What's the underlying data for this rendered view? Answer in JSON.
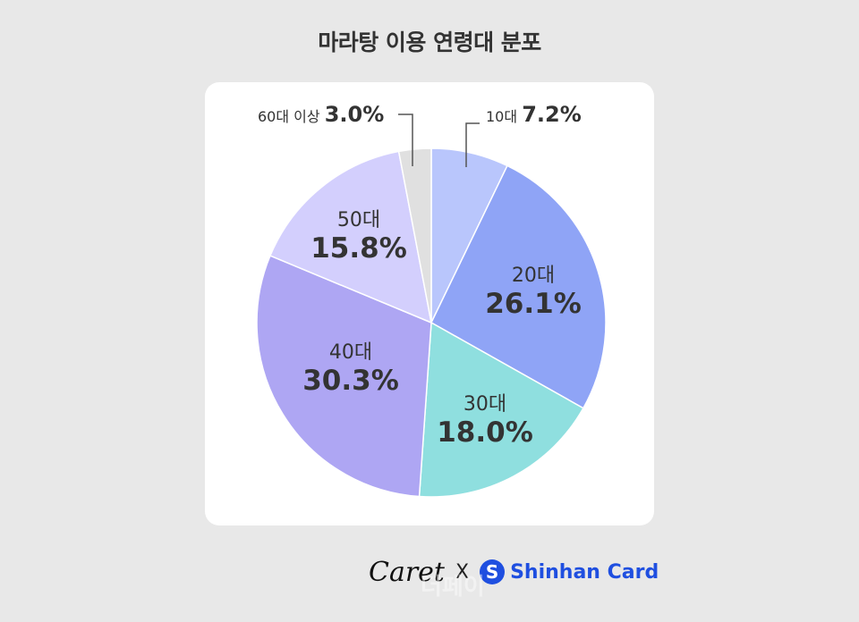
{
  "chart_data": {
    "type": "pie",
    "title": "마라탕 이용 연령대 분포",
    "slices": [
      {
        "label": "10대",
        "value": 7.2,
        "display": "7.2%",
        "color": "#b9c6fc"
      },
      {
        "label": "20대",
        "value": 26.1,
        "display": "26.1%",
        "color": "#8fa4f6"
      },
      {
        "label": "30대",
        "value": 18.0,
        "display": "18.0%",
        "color": "#8fdfdf"
      },
      {
        "label": "40대",
        "value": 30.3,
        "display": "30.3%",
        "color": "#aea6f3"
      },
      {
        "label": "50대",
        "value": 15.8,
        "display": "15.8%",
        "color": "#d3cffd"
      },
      {
        "label": "60대 이상",
        "value": 3.0,
        "display": "3.0%",
        "color": "#e0e0e0"
      }
    ],
    "start_angle": "12 o'clock",
    "direction": "clockwise"
  },
  "footer": {
    "brand1": "Caret",
    "separator": "X",
    "brand2": "Shinhan Card",
    "watermark": "더페이"
  },
  "colors": {
    "background": "#e8e8e8",
    "card": "#ffffff",
    "shinhan_blue": "#1f4fe0"
  }
}
